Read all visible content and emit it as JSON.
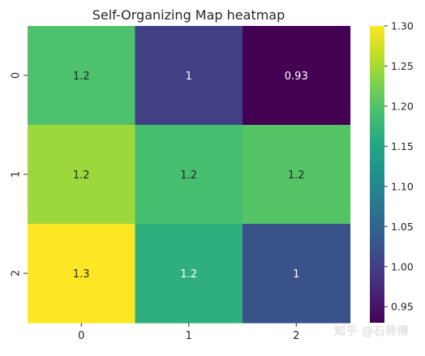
{
  "chart_data": {
    "type": "heatmap",
    "title": "Self-Organizing Map heatmap",
    "xlabel": "",
    "ylabel": "",
    "x_categories": [
      "0",
      "1",
      "2"
    ],
    "y_categories": [
      "0",
      "1",
      "2"
    ],
    "values": [
      [
        1.195,
        1.0,
        0.93
      ],
      [
        1.245,
        1.19,
        1.2
      ],
      [
        1.3,
        1.165,
        1.025
      ]
    ],
    "annotations": [
      [
        "1.2",
        "1",
        "0.93"
      ],
      [
        "1.2",
        "1.2",
        "1.2"
      ],
      [
        "1.3",
        "1.2",
        "1"
      ]
    ],
    "colormap": "viridis",
    "color_range": [
      0.93,
      1.3
    ],
    "colorbar_ticks": [
      "0.95",
      "1.00",
      "1.05",
      "1.10",
      "1.15",
      "1.20",
      "1.25",
      "1.30"
    ],
    "grid": false,
    "legend": "colorbar-right"
  },
  "watermark": "知乎 @石师傅"
}
